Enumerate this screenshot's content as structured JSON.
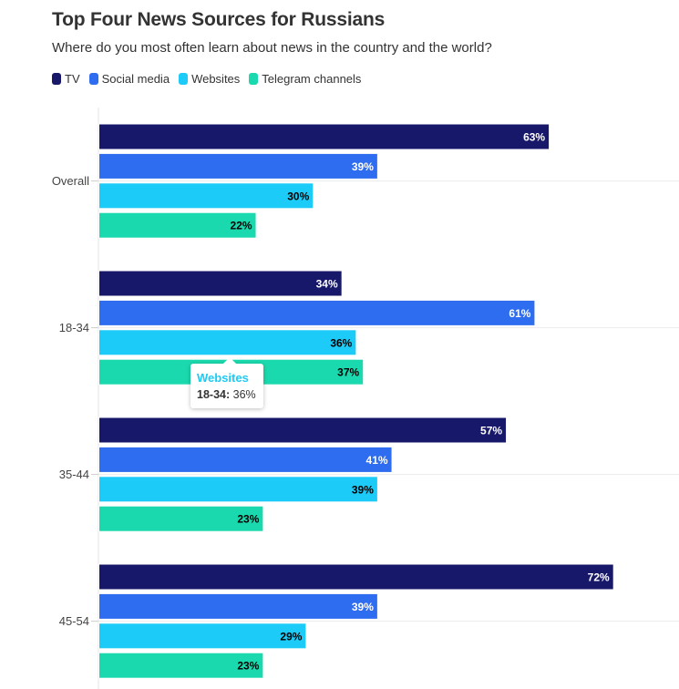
{
  "chart_data": {
    "type": "bar",
    "orientation": "horizontal",
    "title": "Top Four News Sources for Russians",
    "subtitle": "Where do you most often learn about news in the country and the world?",
    "categories": [
      "Overall",
      "18-34",
      "35-44",
      "45-54"
    ],
    "series": [
      {
        "name": "TV",
        "color": "#18186b",
        "label_color": "#ffffff",
        "values": [
          63,
          34,
          57,
          72
        ]
      },
      {
        "name": "Social media",
        "color": "#2e6cf0",
        "label_color": "#ffffff",
        "values": [
          39,
          61,
          41,
          39
        ]
      },
      {
        "name": "Websites",
        "color": "#1ccbf7",
        "label_color": "#000000",
        "values": [
          30,
          36,
          39,
          29
        ]
      },
      {
        "name": "Telegram channels",
        "color": "#1bd9ae",
        "label_color": "#000000",
        "values": [
          22,
          37,
          23,
          23
        ]
      }
    ],
    "value_suffix": "%",
    "legend_position": "top-left",
    "grid": true,
    "xlim": [
      0,
      80
    ]
  },
  "tooltip": {
    "title": "Websites",
    "label": "18-34:",
    "value": "36%"
  }
}
